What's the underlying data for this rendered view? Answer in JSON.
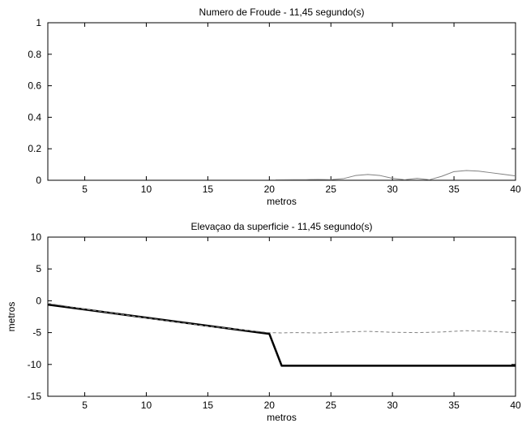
{
  "chart_data": [
    {
      "type": "line",
      "title": "Numero de Froude - 11,45 segundo(s)",
      "xlabel": "metros",
      "ylabel": "",
      "xlim": [
        2,
        40
      ],
      "ylim": [
        0,
        1
      ],
      "xticks": [
        5,
        10,
        15,
        20,
        25,
        30,
        35,
        40
      ],
      "yticks": [
        0,
        0.2,
        0.4,
        0.6,
        0.8,
        1
      ],
      "ytick_labels": [
        "0",
        "0.2",
        "0.4",
        "0.6",
        "0.8",
        "1"
      ],
      "grid": false,
      "series": [
        {
          "style": "solid",
          "color": "#808080",
          "x": [
            20.5,
            22,
            23,
            24,
            25,
            26,
            27,
            28,
            29,
            30,
            31,
            32,
            33,
            34,
            35,
            36,
            37,
            38,
            39,
            40
          ],
          "y": [
            0.003,
            0.004,
            0.004,
            0.005,
            0.004,
            0.01,
            0.03,
            0.037,
            0.03,
            0.012,
            0.003,
            0.012,
            0.003,
            0.025,
            0.055,
            0.062,
            0.058,
            0.048,
            0.038,
            0.028
          ]
        }
      ]
    },
    {
      "type": "line",
      "title": "Elevaçao da superficie - 11,45 segundo(s)",
      "xlabel": "metros",
      "ylabel": "metros",
      "xlim": [
        2,
        40
      ],
      "ylim": [
        -15,
        10
      ],
      "xticks": [
        5,
        10,
        15,
        20,
        25,
        30,
        35,
        40
      ],
      "yticks": [
        -15,
        -10,
        -5,
        0,
        5,
        10
      ],
      "ytick_labels": [
        "-15",
        "-10",
        "-5",
        "0",
        "5",
        "10"
      ],
      "grid": false,
      "series": [
        {
          "style": "solid-thick",
          "color": "#000000",
          "x": [
            2,
            20,
            21,
            40
          ],
          "y": [
            -0.6,
            -5.2,
            -10.2,
            -10.2
          ]
        },
        {
          "style": "dashed",
          "color": "#808080",
          "x": [
            2,
            5,
            10,
            15,
            20,
            21,
            22,
            24,
            26,
            28,
            30,
            32,
            34,
            36,
            38,
            40
          ],
          "y": [
            -0.4,
            -1.3,
            -2.7,
            -4.0,
            -5.0,
            -5.05,
            -5.0,
            -5.05,
            -4.9,
            -4.8,
            -4.95,
            -5.0,
            -4.9,
            -4.7,
            -4.8,
            -5.0
          ]
        }
      ]
    }
  ]
}
